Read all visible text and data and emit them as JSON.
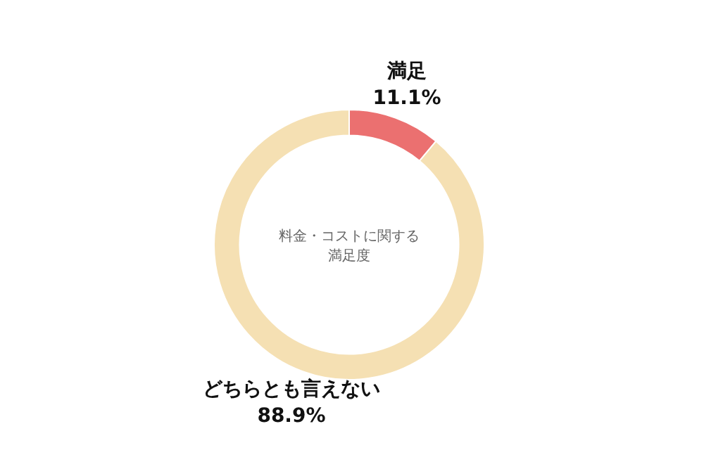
{
  "chart_data": {
    "type": "donut",
    "title": "料金・コストに関する満足度",
    "categories": [
      "満足",
      "どちらとも言えない"
    ],
    "values": [
      11.1,
      88.9
    ],
    "value_labels": [
      "11.1%",
      "88.9%"
    ],
    "colors": [
      "#eb7070",
      "#f5e0b3"
    ]
  }
}
